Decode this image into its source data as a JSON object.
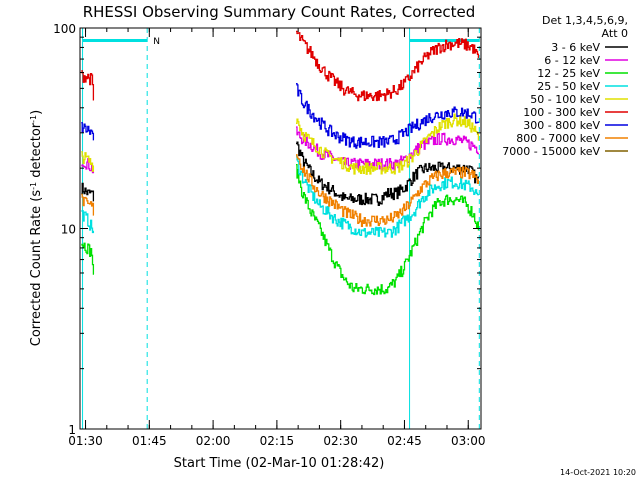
{
  "chart_data": {
    "type": "line",
    "title": "RHESSI Observing Summary Count Rates, Corrected",
    "xlabel": "Start Time (02-Mar-10 01:28:42)",
    "ylabel_main": "Corrected Count Rate (s",
    "ylabel_sup1": "-1",
    "ylabel_mid": " detector",
    "ylabel_sup2": "-1",
    "ylabel_end": ")",
    "y_scale": "log",
    "ylim": [
      1,
      100
    ],
    "y_ticks": [
      {
        "value": 1,
        "label": "1"
      },
      {
        "value": 10,
        "label": "10"
      },
      {
        "value": 100,
        "label": "100"
      }
    ],
    "x_range_min": [
      88.7,
      183
    ],
    "x_ticks": [
      {
        "value": 90,
        "label": "01:30"
      },
      {
        "value": 105,
        "label": "01:45"
      },
      {
        "value": 120,
        "label": "02:00"
      },
      {
        "value": 135,
        "label": "02:15"
      },
      {
        "value": 150,
        "label": "02:30"
      },
      {
        "value": 165,
        "label": "02:45"
      },
      {
        "value": 180,
        "label": "03:00"
      }
    ],
    "legend_header": [
      "Det 1,3,4,5,6,9,",
      "Att 0"
    ],
    "legend_placement": "right",
    "series": [
      {
        "name": "3 - 6 keV",
        "color": "#000000",
        "segments": [
          [
            [
              89.0,
              16
            ],
            [
              90.5,
              15
            ],
            [
              91.5,
              15
            ],
            [
              92.0,
              14
            ]
          ],
          [
            [
              139.5,
              27
            ],
            [
              141,
              22
            ],
            [
              143,
              19
            ],
            [
              145,
              17
            ],
            [
              147,
              16
            ],
            [
              149,
              15
            ],
            [
              151,
              14
            ],
            [
              153,
              14
            ],
            [
              155,
              14
            ],
            [
              157,
              14
            ],
            [
              159,
              14
            ],
            [
              161,
              15
            ],
            [
              163,
              15
            ],
            [
              165,
              16
            ],
            [
              166.5,
              17.5
            ],
            [
              168,
              19
            ],
            [
              170,
              20
            ],
            [
              172,
              20
            ],
            [
              174,
              20
            ],
            [
              176,
              20
            ],
            [
              178,
              20
            ],
            [
              180,
              20
            ],
            [
              182.5,
              17
            ]
          ]
        ]
      },
      {
        "name": "6 - 12 keV",
        "color": "#e000e0",
        "segments": [
          [
            [
              89.0,
              22
            ],
            [
              90.5,
              21
            ],
            [
              91.5,
              20
            ],
            [
              92.0,
              19
            ]
          ],
          [
            [
              139.5,
              30
            ],
            [
              141,
              28
            ],
            [
              143,
              26
            ],
            [
              145,
              24
            ],
            [
              147,
              23
            ],
            [
              149,
              22
            ],
            [
              151,
              21
            ],
            [
              153,
              21
            ],
            [
              155,
              21
            ],
            [
              157,
              21
            ],
            [
              159,
              21
            ],
            [
              161,
              21
            ],
            [
              163,
              21
            ],
            [
              165,
              22
            ],
            [
              167,
              24
            ],
            [
              169,
              26
            ],
            [
              171,
              27
            ],
            [
              173,
              28
            ],
            [
              175,
              28
            ],
            [
              177,
              28
            ],
            [
              179,
              27
            ],
            [
              181,
              26
            ],
            [
              182.5,
              25
            ]
          ]
        ]
      },
      {
        "name": "12 - 25 keV",
        "color": "#00e000",
        "segments": [
          [
            [
              89.0,
              8.5
            ],
            [
              90.5,
              8.0
            ],
            [
              91.5,
              7.5
            ],
            [
              92.0,
              5
            ]
          ],
          [
            [
              139.5,
              20
            ],
            [
              141,
              15
            ],
            [
              143,
              12
            ],
            [
              145,
              10
            ],
            [
              147,
              8
            ],
            [
              149,
              6.5
            ],
            [
              151,
              5.5
            ],
            [
              153,
              5
            ],
            [
              155,
              5
            ],
            [
              157,
              5
            ],
            [
              159,
              5
            ],
            [
              161,
              5
            ],
            [
              163,
              5.5
            ],
            [
              165,
              6.5
            ],
            [
              167,
              8
            ],
            [
              169,
              10
            ],
            [
              171,
              12
            ],
            [
              173,
              13.5
            ],
            [
              175,
              14
            ],
            [
              177,
              14
            ],
            [
              179,
              13.5
            ],
            [
              181,
              12
            ],
            [
              182.5,
              10
            ]
          ]
        ]
      },
      {
        "name": "25 - 50 keV",
        "color": "#00e0e0",
        "segments": [
          [
            [
              89.0,
              12
            ],
            [
              90.5,
              11
            ],
            [
              91.5,
              10
            ],
            [
              92.0,
              9.5
            ]
          ],
          [
            [
              139.5,
              22
            ],
            [
              141,
              18
            ],
            [
              143,
              15
            ],
            [
              145,
              13
            ],
            [
              147,
              12
            ],
            [
              149,
              11
            ],
            [
              151,
              10.5
            ],
            [
              153,
              10
            ],
            [
              155,
              9.5
            ],
            [
              157,
              9.5
            ],
            [
              159,
              9.5
            ],
            [
              161,
              9.5
            ],
            [
              163,
              10
            ],
            [
              165,
              11
            ],
            [
              167,
              12
            ],
            [
              169,
              14
            ],
            [
              171,
              15.5
            ],
            [
              173,
              16.5
            ],
            [
              175,
              17
            ],
            [
              177,
              17
            ],
            [
              179,
              16.5
            ],
            [
              181,
              16
            ],
            [
              182.5,
              14
            ]
          ]
        ]
      },
      {
        "name": "50 - 100 keV",
        "color": "#e0e000",
        "segments": [
          [
            [
              89.0,
              23
            ],
            [
              90.5,
              22
            ],
            [
              91.5,
              21
            ],
            [
              92.0,
              20
            ]
          ],
          [
            [
              139.5,
              36
            ],
            [
              141,
              30
            ],
            [
              143,
              27
            ],
            [
              145,
              25
            ],
            [
              147,
              23
            ],
            [
              149,
              22
            ],
            [
              151,
              21
            ],
            [
              153,
              20
            ],
            [
              155,
              20
            ],
            [
              157,
              20
            ],
            [
              159,
              20
            ],
            [
              161,
              20
            ],
            [
              163,
              20
            ],
            [
              165,
              21
            ],
            [
              167,
              23
            ],
            [
              169,
              26
            ],
            [
              171,
              29
            ],
            [
              173,
              32
            ],
            [
              175,
              34
            ],
            [
              177,
              35
            ],
            [
              179,
              34
            ],
            [
              181,
              32
            ],
            [
              182.5,
              28
            ]
          ]
        ]
      },
      {
        "name": "100 - 300 keV",
        "color": "#e00000",
        "segments": [
          [
            [
              89.0,
              58
            ],
            [
              90.5,
              57
            ],
            [
              91.5,
              55
            ],
            [
              92.0,
              40
            ]
          ],
          [
            [
              139.5,
              95
            ],
            [
              141,
              85
            ],
            [
              143,
              75
            ],
            [
              145,
              65
            ],
            [
              147,
              58
            ],
            [
              149,
              53
            ],
            [
              151,
              49
            ],
            [
              153,
              47
            ],
            [
              155,
              46
            ],
            [
              157,
              46
            ],
            [
              159,
              46
            ],
            [
              161,
              47
            ],
            [
              163,
              49
            ],
            [
              165,
              53
            ],
            [
              167,
              60
            ],
            [
              169,
              68
            ],
            [
              171,
              75
            ],
            [
              173,
              80
            ],
            [
              175,
              83
            ],
            [
              177,
              84
            ],
            [
              179,
              83
            ],
            [
              181,
              80
            ],
            [
              182.5,
              70
            ]
          ]
        ]
      },
      {
        "name": "300 - 800 keV",
        "color": "#0000e0",
        "segments": [
          [
            [
              89.0,
              32
            ],
            [
              90.5,
              31
            ],
            [
              91.5,
              30
            ],
            [
              92.0,
              28
            ]
          ],
          [
            [
              139.5,
              50
            ],
            [
              141,
              43
            ],
            [
              143,
              38
            ],
            [
              145,
              34
            ],
            [
              147,
              31
            ],
            [
              149,
              29
            ],
            [
              151,
              28
            ],
            [
              153,
              27
            ],
            [
              155,
              27
            ],
            [
              157,
              27
            ],
            [
              159,
              27
            ],
            [
              161,
              27
            ],
            [
              163,
              28
            ],
            [
              165,
              30
            ],
            [
              167,
              32
            ],
            [
              169,
              34
            ],
            [
              171,
              36
            ],
            [
              173,
              37
            ],
            [
              175,
              38
            ],
            [
              177,
              38
            ],
            [
              179,
              38
            ],
            [
              181,
              37
            ],
            [
              182.5,
              35
            ]
          ]
        ]
      },
      {
        "name": "800 - 7000 keV",
        "color": "#f08000",
        "segments": [
          [
            [
              89.0,
              14
            ],
            [
              90.5,
              13
            ],
            [
              91.5,
              13
            ],
            [
              92.0,
              12
            ]
          ],
          [
            [
              139.5,
              24
            ],
            [
              141,
              20
            ],
            [
              143,
              17
            ],
            [
              145,
              15
            ],
            [
              147,
              14
            ],
            [
              149,
              13
            ],
            [
              151,
              12
            ],
            [
              153,
              11.5
            ],
            [
              155,
              11
            ],
            [
              157,
              11
            ],
            [
              159,
              11
            ],
            [
              161,
              11
            ],
            [
              163,
              11.5
            ],
            [
              165,
              12.5
            ],
            [
              167,
              14
            ],
            [
              169,
              16
            ],
            [
              171,
              17.5
            ],
            [
              173,
              18.5
            ],
            [
              175,
              19
            ],
            [
              177,
              19
            ],
            [
              179,
              19
            ],
            [
              181,
              18.5
            ],
            [
              182.5,
              17
            ]
          ]
        ]
      },
      {
        "name": "7000 - 15000 keV",
        "color": "#806000",
        "segments": []
      }
    ],
    "attenuator_marker": {
      "label": "N"
    }
  },
  "timestamp": "14-Oct-2021 10:20"
}
